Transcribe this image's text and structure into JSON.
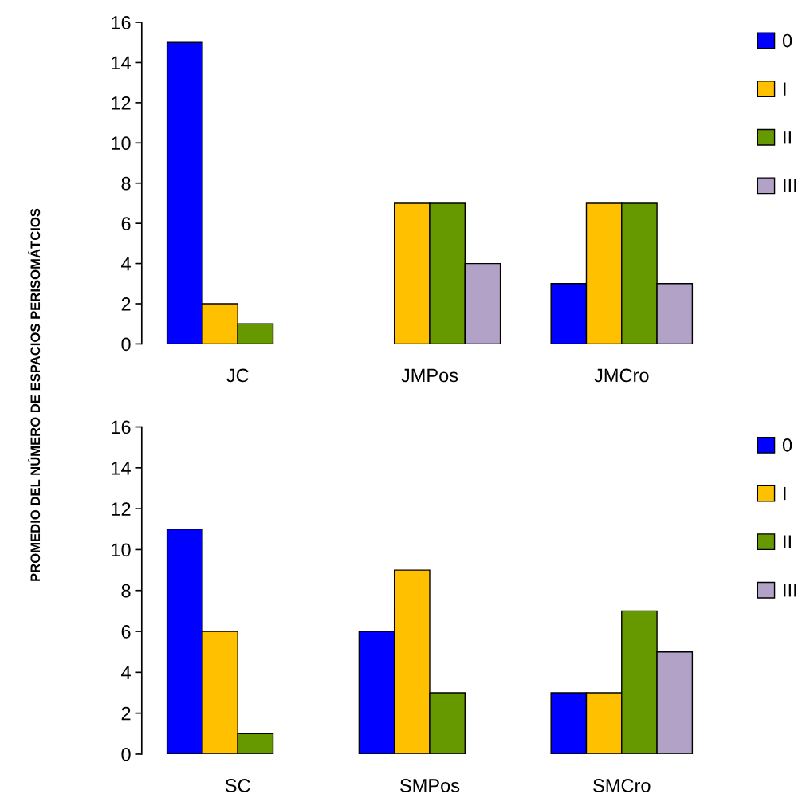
{
  "chart_data": [
    {
      "type": "bar",
      "ylabel": "PROMEDIO DEL NÚMERO DE ESPACIOS PERISOMÁTCIOS",
      "categories": [
        "JC",
        "JMPos",
        "JMCro"
      ],
      "ylim": [
        0,
        16
      ],
      "yticks": [
        0,
        2,
        4,
        6,
        8,
        10,
        12,
        14,
        16
      ],
      "grid": false,
      "legend": "top right",
      "series": [
        {
          "name": "0",
          "color": "#0000ff",
          "values": [
            15,
            null,
            3
          ]
        },
        {
          "name": "I",
          "color": "#ffc000",
          "values": [
            2,
            7,
            7
          ]
        },
        {
          "name": "II",
          "color": "#669900",
          "values": [
            1,
            7,
            7
          ]
        },
        {
          "name": "III",
          "color": "#b2a2c7",
          "values": [
            null,
            4,
            3
          ]
        }
      ]
    },
    {
      "type": "bar",
      "categories": [
        "SC",
        "SMPos",
        "SMCro"
      ],
      "ylim": [
        0,
        16
      ],
      "yticks": [
        0,
        2,
        4,
        6,
        8,
        10,
        12,
        14,
        16
      ],
      "grid": false,
      "legend": "top right",
      "series": [
        {
          "name": "0",
          "color": "#0000ff",
          "values": [
            11,
            6,
            3
          ]
        },
        {
          "name": "I",
          "color": "#ffc000",
          "values": [
            6,
            9,
            3
          ]
        },
        {
          "name": "II",
          "color": "#669900",
          "values": [
            1,
            3,
            7
          ]
        },
        {
          "name": "III",
          "color": "#b2a2c7",
          "values": [
            null,
            null,
            5
          ]
        }
      ]
    }
  ]
}
